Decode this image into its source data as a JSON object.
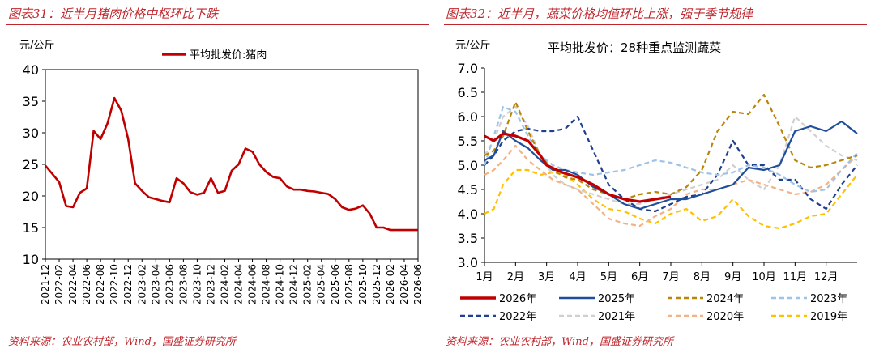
{
  "left": {
    "fig_title": "图表31：近半月猪肉价格中枢环比下跌",
    "source": "资料来源：农业农村部，Wind，国盛证券研究所",
    "chart_data": {
      "type": "line",
      "ylabel": "元/公斤",
      "ylim": [
        10,
        40
      ],
      "yticks": [
        10,
        15,
        20,
        25,
        30,
        35,
        40
      ],
      "xlim": [
        "2021-12",
        "2026-06"
      ],
      "xticks": [
        "2021-12",
        "2022-02",
        "2022-04",
        "2022-06",
        "2022-08",
        "2022-10",
        "2022-12",
        "2023-02",
        "2023-04",
        "2023-06",
        "2023-08",
        "2023-10",
        "2023-12",
        "2024-02",
        "2024-04",
        "2024-06",
        "2024-08",
        "2024-10",
        "2024-12",
        "2025-02",
        "2025-04",
        "2025-06",
        "2025-08",
        "2025-10",
        "2025-12",
        "2026-02",
        "2026-04",
        "2026-06"
      ],
      "legend_position": "top-center",
      "series": [
        {
          "name": "平均批发价:猪肉",
          "color": "#c00000",
          "x": [
            "2021-12",
            "2022-01",
            "2022-02",
            "2022-03",
            "2022-04",
            "2022-05",
            "2022-06",
            "2022-07",
            "2022-08",
            "2022-09",
            "2022-10",
            "2022-11",
            "2022-12",
            "2023-01",
            "2023-02",
            "2023-03",
            "2023-04",
            "2023-05",
            "2023-06",
            "2023-07",
            "2023-08",
            "2023-09",
            "2023-10",
            "2023-11",
            "2023-12",
            "2024-01",
            "2024-02",
            "2024-03",
            "2024-04",
            "2024-05",
            "2024-06",
            "2024-07",
            "2024-08",
            "2024-09",
            "2024-10",
            "2024-11",
            "2024-12",
            "2025-01",
            "2025-02",
            "2025-03",
            "2025-04",
            "2025-05",
            "2025-06",
            "2025-07",
            "2025-08",
            "2025-09",
            "2025-10",
            "2025-11",
            "2025-12",
            "2026-01",
            "2026-02",
            "2026-03",
            "2026-04",
            "2026-05",
            "2026-06"
          ],
          "y": [
            24.8,
            23.5,
            22.2,
            18.4,
            18.2,
            20.5,
            21.2,
            30.3,
            29.0,
            31.5,
            35.5,
            33.5,
            29.0,
            22.0,
            20.8,
            19.8,
            19.5,
            19.2,
            19.0,
            22.8,
            22.0,
            20.6,
            20.2,
            20.5,
            22.8,
            20.5,
            20.8,
            24.0,
            25.0,
            27.5,
            27.0,
            25.0,
            23.8,
            23.0,
            22.8,
            21.5,
            21.0,
            21.0,
            20.8,
            20.7,
            20.5,
            20.3,
            19.5,
            18.2,
            17.8,
            18.0,
            18.5,
            17.2,
            15.0,
            15.0,
            14.6,
            14.6,
            14.6,
            14.6,
            14.6
          ]
        }
      ]
    }
  },
  "right": {
    "fig_title": "图表32：近半月，蔬菜价格均值环比上涨，强于季节规律",
    "source": "资料来源：农业农村部，Wind，国盛证券研究所",
    "chart_data": {
      "type": "line",
      "title": "平均批发价：28种重点监测蔬菜",
      "ylabel": "元/公斤",
      "ylim": [
        3.0,
        7.0
      ],
      "yticks": [
        3.0,
        3.5,
        4.0,
        4.5,
        5.0,
        5.5,
        6.0,
        6.5,
        7.0
      ],
      "categories": [
        "1月",
        "2月",
        "3月",
        "4月",
        "5月",
        "6月",
        "7月",
        "8月",
        "9月",
        "10月",
        "11月",
        "12月"
      ],
      "legend_position": "bottom",
      "series": [
        {
          "name": "2026年",
          "color": "#c00000",
          "style": "solid",
          "width": 3.2,
          "x": [
            1.0,
            1.3,
            1.6,
            2.0,
            2.4,
            2.8,
            3.0,
            3.5,
            4.0,
            4.5,
            5.0,
            5.5,
            6.0,
            6.5,
            7.0
          ],
          "y": [
            5.6,
            5.5,
            5.65,
            5.6,
            5.5,
            5.2,
            5.0,
            4.85,
            4.75,
            4.6,
            4.4,
            4.3,
            4.25,
            4.3,
            4.35
          ]
        },
        {
          "name": "2025年",
          "color": "#1f4e9a",
          "style": "solid",
          "width": 2.2,
          "x": [
            1.0,
            1.3,
            1.6,
            2.0,
            2.4,
            2.8,
            3.2,
            3.6,
            4.0,
            4.5,
            5.0,
            5.5,
            6.0,
            6.5,
            7.0,
            7.5,
            8.0,
            8.5,
            9.0,
            9.5,
            10.0,
            10.5,
            11.0,
            11.5,
            12.0,
            12.5,
            13.0
          ],
          "y": [
            5.1,
            5.2,
            5.7,
            5.5,
            5.35,
            5.1,
            4.9,
            4.9,
            4.8,
            4.55,
            4.4,
            4.2,
            4.1,
            4.2,
            4.3,
            4.3,
            4.4,
            4.5,
            4.6,
            4.95,
            4.9,
            5.0,
            5.7,
            5.8,
            5.7,
            5.9,
            5.65
          ]
        },
        {
          "name": "2024年",
          "color": "#b8860b",
          "style": "dashed",
          "width": 2.2,
          "x": [
            1.0,
            1.3,
            1.6,
            2.0,
            2.4,
            2.8,
            3.2,
            3.6,
            4.0,
            4.5,
            5.0,
            5.5,
            6.0,
            6.5,
            7.0,
            7.5,
            8.0,
            8.5,
            9.0,
            9.5,
            10.0,
            10.5,
            11.0,
            11.5,
            12.0,
            12.5,
            13.0
          ],
          "y": [
            5.2,
            5.3,
            5.6,
            6.3,
            5.7,
            5.2,
            4.9,
            4.75,
            4.7,
            4.5,
            4.4,
            4.3,
            4.4,
            4.45,
            4.4,
            4.55,
            4.9,
            5.7,
            6.1,
            6.05,
            6.45,
            5.8,
            5.1,
            4.95,
            5.0,
            5.1,
            5.2
          ]
        },
        {
          "name": "2023年",
          "color": "#9dc3e6",
          "style": "dashed",
          "width": 2.2,
          "x": [
            1.0,
            1.3,
            1.6,
            2.0,
            2.4,
            2.8,
            3.2,
            3.6,
            4.0,
            4.5,
            5.0,
            5.5,
            6.0,
            6.5,
            7.0,
            7.5,
            8.0,
            8.5,
            9.0,
            9.5,
            10.0,
            10.5,
            11.0,
            11.5,
            12.0,
            12.5,
            13.0
          ],
          "y": [
            5.0,
            5.6,
            6.2,
            6.1,
            5.6,
            5.2,
            5.0,
            4.9,
            4.85,
            4.8,
            4.85,
            4.9,
            5.0,
            5.1,
            5.05,
            4.95,
            4.85,
            4.8,
            4.85,
            5.0,
            4.95,
            4.8,
            4.6,
            4.45,
            4.5,
            4.9,
            5.25
          ]
        },
        {
          "name": "2022年",
          "color": "#1f3f8f",
          "style": "dashed",
          "width": 2.2,
          "x": [
            1.0,
            1.3,
            1.6,
            2.0,
            2.4,
            2.8,
            3.2,
            3.6,
            4.0,
            4.5,
            5.0,
            5.5,
            6.0,
            6.5,
            7.0,
            7.5,
            8.0,
            8.5,
            9.0,
            9.5,
            10.0,
            10.5,
            11.0,
            11.5,
            12.0,
            12.5,
            13.0
          ],
          "y": [
            5.0,
            5.2,
            5.5,
            5.7,
            5.75,
            5.7,
            5.7,
            5.75,
            6.0,
            5.3,
            4.6,
            4.3,
            4.1,
            4.05,
            4.2,
            4.35,
            4.4,
            4.8,
            5.5,
            5.0,
            5.0,
            4.7,
            4.7,
            4.3,
            4.1,
            4.6,
            5.0
          ]
        },
        {
          "name": "2021年",
          "color": "#d0d0d0",
          "style": "dashed",
          "width": 2.2,
          "x": [
            1.0,
            1.3,
            1.6,
            2.0,
            2.4,
            2.8,
            3.2,
            3.6,
            4.0,
            4.5,
            5.0,
            5.5,
            6.0,
            6.5,
            7.0,
            7.5,
            8.0,
            8.5,
            9.0,
            9.5,
            10.0,
            10.5,
            11.0,
            11.5,
            12.0,
            12.5,
            13.0
          ],
          "y": [
            5.2,
            5.5,
            6.0,
            6.2,
            5.8,
            5.2,
            4.8,
            4.6,
            4.5,
            4.4,
            4.3,
            4.2,
            4.2,
            4.3,
            4.4,
            4.5,
            4.6,
            4.7,
            5.0,
            4.7,
            4.5,
            5.0,
            6.0,
            5.7,
            5.4,
            5.2,
            5.1
          ]
        },
        {
          "name": "2020年",
          "color": "#f4b183",
          "style": "dashed",
          "width": 2.2,
          "x": [
            1.0,
            1.3,
            1.6,
            2.0,
            2.4,
            2.8,
            3.2,
            3.6,
            4.0,
            4.5,
            5.0,
            5.5,
            6.0,
            6.5,
            7.0,
            7.5,
            8.0,
            8.5,
            9.0,
            9.5,
            10.0,
            10.5,
            11.0,
            11.5,
            12.0,
            12.5,
            13.0
          ],
          "y": [
            4.8,
            4.9,
            5.1,
            5.4,
            5.1,
            4.9,
            4.7,
            4.6,
            4.5,
            4.2,
            3.9,
            3.8,
            3.75,
            3.95,
            4.1,
            4.4,
            4.5,
            4.5,
            4.6,
            4.7,
            4.6,
            4.5,
            4.4,
            4.45,
            4.6,
            4.9,
            5.2
          ]
        },
        {
          "name": "2019年",
          "color": "#ffc000",
          "style": "dashed",
          "width": 2.2,
          "x": [
            1.0,
            1.3,
            1.6,
            2.0,
            2.4,
            2.8,
            3.2,
            3.6,
            4.0,
            4.5,
            5.0,
            5.5,
            6.0,
            6.5,
            7.0,
            7.5,
            8.0,
            8.5,
            9.0,
            9.5,
            10.0,
            10.5,
            11.0,
            11.5,
            12.0,
            12.5,
            13.0
          ],
          "y": [
            4.0,
            4.1,
            4.6,
            4.9,
            4.9,
            4.8,
            4.85,
            4.8,
            4.6,
            4.3,
            4.1,
            4.05,
            3.9,
            3.8,
            4.0,
            4.1,
            3.85,
            3.95,
            4.3,
            3.95,
            3.75,
            3.7,
            3.8,
            3.95,
            4.0,
            4.4,
            4.8
          ]
        }
      ]
    }
  }
}
